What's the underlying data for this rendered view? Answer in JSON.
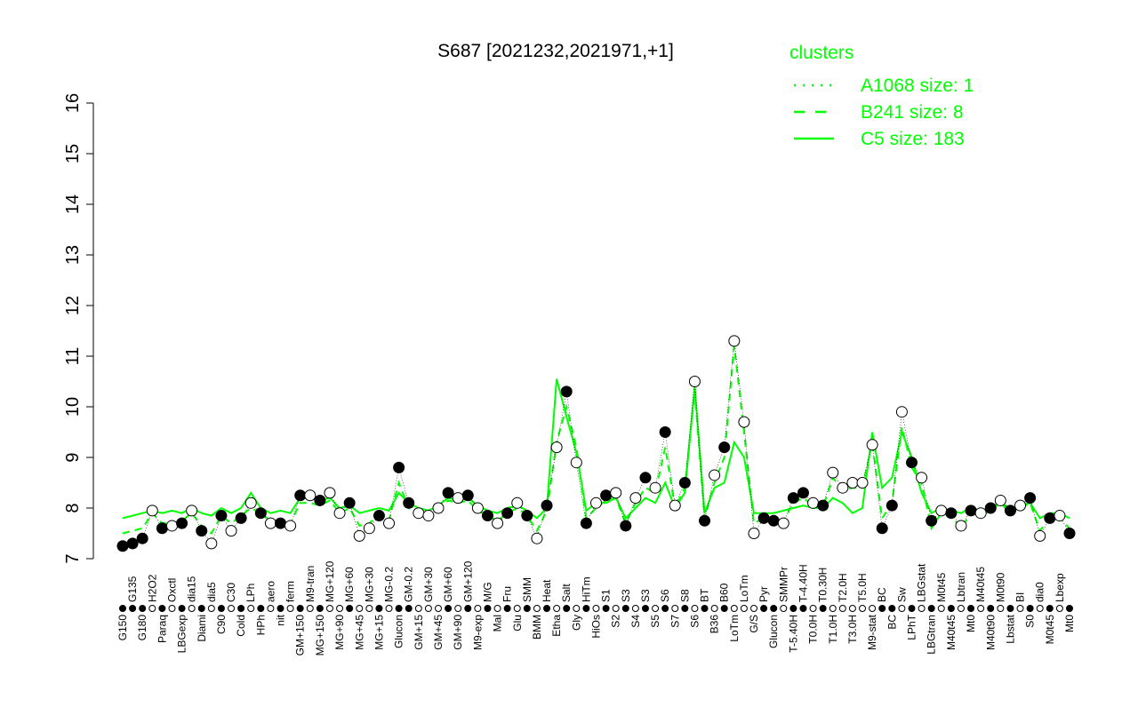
{
  "chart_data": {
    "type": "line",
    "title": "S687 [2021232,2021971,+1]",
    "xlabel": "",
    "ylabel": "",
    "ylim": [
      7,
      16
    ],
    "yticks": [
      7,
      8,
      9,
      10,
      11,
      12,
      13,
      14,
      15,
      16
    ],
    "grid": false,
    "legend": {
      "title": "clusters",
      "placement": "top-right",
      "entries": [
        {
          "name": "A1068 size: 1",
          "style": "dotted"
        },
        {
          "name": "B241 size: 8",
          "style": "dashed"
        },
        {
          "name": "C5 size: 183",
          "style": "solid"
        }
      ]
    },
    "colors": {
      "line": "#00ff00",
      "point": "#000000",
      "text": "#000000",
      "legend": "#00ff00"
    },
    "labels": [
      "G150",
      "G135",
      "G180",
      "H2O2",
      "Paraq",
      "Oxctl",
      "LBGexp",
      "dia15",
      "Diami",
      "dia5",
      "C90",
      "C30",
      "Cold",
      "LPh",
      "HPh",
      "aero",
      "nit",
      "ferm",
      "GM+150",
      "M9-tran",
      "MG+150",
      "MG+120",
      "MG+90",
      "MG+60",
      "MG+45",
      "MG+30",
      "MG+15",
      "MG-0.2",
      "Glucon",
      "GM-0.2",
      "GM+15",
      "GM+30",
      "GM+45",
      "GM+60",
      "GM+90",
      "GM+120",
      "M9-exp",
      "M/G",
      "Mal",
      "Fru",
      "Glu",
      "SMM",
      "BMM",
      "Heat",
      "Etha",
      "Salt",
      "Gly",
      "HiTm",
      "HiOs",
      "S1",
      "S2",
      "S3",
      "S4",
      "S3",
      "S5",
      "S6",
      "S7",
      "S8",
      "S6",
      "BT",
      "B36",
      "B60",
      "LoTm",
      "LoTm",
      "G/S",
      "Pyr",
      "Glucon",
      "SMMPr",
      "T-5.40H",
      "T-4.40H",
      "T0.0H",
      "T0.30H",
      "T1.0H",
      "T2.0H",
      "T3.0H",
      "T5.0H",
      "M9-stat",
      "BC",
      "BC",
      "Sw",
      "LPhT",
      "LBGstat",
      "LBGtran",
      "M0t45",
      "M40t45",
      "Lbtran",
      "Mt0",
      "M40t45",
      "M40t90",
      "M0t90",
      "Lbstat",
      "BI",
      "S0",
      "dia0",
      "M0t45",
      "Lbexp",
      "Mt0"
    ],
    "values": [
      7.25,
      7.3,
      7.4,
      7.95,
      7.6,
      7.65,
      7.7,
      7.95,
      7.55,
      7.3,
      7.85,
      7.55,
      7.8,
      8.1,
      7.9,
      7.7,
      7.7,
      7.65,
      8.25,
      8.25,
      8.15,
      8.3,
      7.9,
      8.1,
      7.45,
      7.6,
      7.85,
      7.7,
      8.8,
      8.1,
      7.9,
      7.85,
      8.0,
      8.3,
      8.2,
      8.25,
      8.0,
      7.85,
      7.7,
      7.9,
      8.1,
      7.85,
      7.4,
      8.05,
      9.2,
      10.3,
      8.9,
      7.7,
      8.1,
      8.25,
      8.3,
      7.65,
      8.2,
      8.6,
      8.4,
      9.5,
      8.05,
      8.5,
      10.5,
      7.75,
      8.65,
      9.2,
      11.3,
      9.7,
      7.5,
      7.8,
      7.75,
      7.7,
      8.2,
      8.3,
      8.1,
      8.05,
      8.7,
      8.4,
      8.5,
      8.5,
      9.25,
      7.6,
      8.05,
      9.9,
      8.9,
      8.6,
      7.75,
      7.95,
      7.9,
      7.65,
      7.95,
      7.9,
      8.0,
      8.15,
      7.95,
      8.05,
      8.2,
      7.45,
      7.8,
      7.85,
      7.5
    ],
    "filled": [
      1,
      1,
      1,
      0,
      1,
      0,
      1,
      0,
      1,
      0,
      1,
      0,
      1,
      0,
      1,
      0,
      1,
      0,
      1,
      0,
      1,
      0,
      0,
      1,
      0,
      0,
      1,
      0,
      1,
      1,
      0,
      0,
      0,
      1,
      0,
      1,
      0,
      1,
      0,
      1,
      0,
      1,
      0,
      1,
      0,
      1,
      0,
      1,
      0,
      1,
      0,
      1,
      0,
      1,
      0,
      1,
      0,
      1,
      0,
      1,
      0,
      1,
      0,
      0,
      0,
      1,
      1,
      0,
      1,
      1,
      0,
      1,
      0,
      0,
      0,
      0,
      0,
      1,
      1,
      0,
      1,
      0,
      1,
      0,
      1,
      0,
      1,
      0,
      1,
      0,
      1,
      0,
      1,
      0,
      1,
      0,
      1
    ],
    "series": [
      {
        "name": "C5",
        "style": "solid",
        "values": [
          7.8,
          7.85,
          7.9,
          7.95,
          7.9,
          7.95,
          7.9,
          8.0,
          7.9,
          7.85,
          8.0,
          7.9,
          8.0,
          8.3,
          8.0,
          7.9,
          7.95,
          7.9,
          8.2,
          8.2,
          8.15,
          8.2,
          8.0,
          8.05,
          7.9,
          7.95,
          8.0,
          7.95,
          8.3,
          8.1,
          8.0,
          7.95,
          8.05,
          8.2,
          8.15,
          8.2,
          8.05,
          7.95,
          7.9,
          8.0,
          8.05,
          7.95,
          7.8,
          8.0,
          10.55,
          9.8,
          9.1,
          7.95,
          8.1,
          8.1,
          8.2,
          7.8,
          8.0,
          8.2,
          8.1,
          8.5,
          8.0,
          8.3,
          10.4,
          7.9,
          8.4,
          8.5,
          9.3,
          9.0,
          7.9,
          7.9,
          7.9,
          7.95,
          8.0,
          8.05,
          8.0,
          8.0,
          8.2,
          8.1,
          7.9,
          8.0,
          9.5,
          8.4,
          8.6,
          9.5,
          9.0,
          8.3,
          7.9,
          8.0,
          7.95,
          7.9,
          8.0,
          7.95,
          8.0,
          8.1,
          8.0,
          8.05,
          8.1,
          7.8,
          7.9,
          7.9,
          7.8
        ]
      },
      {
        "name": "B241",
        "style": "dashed",
        "values": [
          7.5,
          7.55,
          7.6,
          7.9,
          7.7,
          7.7,
          7.75,
          7.9,
          7.65,
          7.5,
          7.85,
          7.7,
          7.85,
          8.0,
          7.9,
          7.75,
          7.75,
          7.7,
          8.1,
          8.1,
          8.05,
          8.15,
          7.9,
          8.0,
          7.65,
          7.7,
          7.85,
          7.75,
          8.5,
          8.0,
          7.9,
          7.85,
          7.95,
          8.15,
          8.1,
          8.15,
          7.95,
          7.85,
          7.75,
          7.9,
          8.0,
          7.85,
          7.55,
          7.95,
          9.3,
          10.0,
          9.2,
          7.8,
          8.0,
          8.15,
          8.2,
          7.7,
          8.1,
          8.4,
          8.3,
          9.2,
          8.0,
          8.4,
          10.3,
          7.8,
          8.5,
          9.0,
          11.2,
          9.5,
          7.7,
          7.8,
          7.8,
          7.75,
          8.1,
          8.2,
          8.05,
          8.0,
          8.6,
          8.35,
          8.4,
          8.4,
          9.3,
          7.8,
          8.1,
          9.6,
          8.8,
          8.5,
          7.6,
          7.9,
          7.85,
          7.6,
          7.9,
          7.85,
          7.95,
          8.1,
          7.9,
          8.0,
          8.1,
          7.55,
          7.8,
          7.8,
          7.6
        ]
      }
    ]
  }
}
